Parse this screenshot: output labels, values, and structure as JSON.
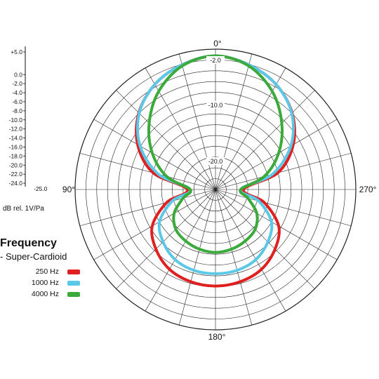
{
  "chart_data": {
    "type": "polar",
    "angle_labels": [
      {
        "deg": 0,
        "text": "0°"
      },
      {
        "deg": 90,
        "text": "90°"
      },
      {
        "deg": 180,
        "text": "180°"
      },
      {
        "deg": 270,
        "text": "270°"
      }
    ],
    "ring_labels": [
      "-2.0",
      "-10.0",
      "-20.0"
    ],
    "scale_labels": [
      "+5.0",
      "0.0",
      "-2.0",
      "-4.0",
      "-6.0",
      "-8.0",
      "-10.0",
      "-12.0",
      "-14.0",
      "-16.0",
      "-18.0",
      "-20.0",
      "-22.0",
      "-24.0",
      "-25.0"
    ],
    "unit_label": "dB rel. 1V/Pa",
    "angles_deg": [
      0,
      15,
      30,
      45,
      60,
      75,
      90,
      105,
      120,
      135,
      150,
      165,
      180
    ],
    "series": [
      {
        "name": "250 Hz",
        "color": "#e02020",
        "symmetric": true,
        "values_db": [
          -1.2,
          -2.0,
          -3.4,
          -5.7,
          -9.0,
          -13.5,
          -20.0,
          -16.0,
          -12.0,
          -10.0,
          -8.6,
          -8.0,
          -7.8
        ]
      },
      {
        "name": "1000 Hz",
        "color": "#5bc8e8",
        "symmetric": true,
        "values_db": [
          -1.2,
          -2.0,
          -3.4,
          -5.8,
          -9.5,
          -14.5,
          -20.5,
          -17.0,
          -13.5,
          -11.8,
          -10.6,
          -10.1,
          -10.0
        ]
      },
      {
        "name": "4000 Hz",
        "color": "#3aaa3a",
        "symmetric": true,
        "values_db": [
          -1.2,
          -2.2,
          -4.8,
          -8.3,
          -12.0,
          -16.0,
          -20.5,
          -19.0,
          -16.5,
          -15.0,
          -14.4,
          -14.0,
          -13.8
        ]
      }
    ]
  },
  "legend": {
    "title": "Frequency",
    "subtitle": "- Super-Cardioid",
    "items": [
      {
        "label": "250 Hz",
        "color": "#e02020"
      },
      {
        "label": "1000 Hz",
        "color": "#5bc8e8"
      },
      {
        "label": "4000 Hz",
        "color": "#3aaa3a"
      }
    ]
  }
}
